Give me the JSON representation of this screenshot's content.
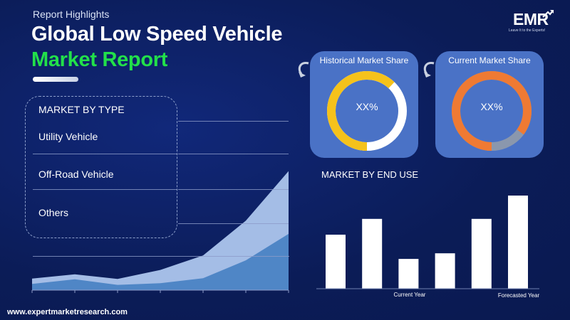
{
  "header": {
    "eyebrow": "Report Highlights",
    "title_line1": "Global Low Speed Vehicle",
    "title_line2": "Market Report"
  },
  "logo": {
    "text": "EMR",
    "tagline": "Leave It to the Experts!"
  },
  "market_by_type": {
    "heading": "MARKET BY TYPE",
    "items": [
      "Utility Vehicle",
      "Off-Road Vehicle",
      "Others"
    ]
  },
  "cards": {
    "historical": {
      "title": "Historical Market Share",
      "value": "XX%",
      "ring_color": "#f5c21b",
      "rest_color": "#ffffff",
      "share": 0.62
    },
    "current": {
      "title": "Current Market Share",
      "value": "XX%",
      "ring_color": "#ef7a33",
      "rest_color": "#8a97ad",
      "share": 0.85
    }
  },
  "market_by_end_use": {
    "heading": "MARKET BY END USE"
  },
  "footer": {
    "url": "www.expertmarketresearch.com"
  },
  "colors": {
    "background": "#0c1f5e",
    "title_accent": "#22e04a",
    "card": "#4a72c6",
    "area_light": "#a4bde6",
    "area_dark": "#4f86c6"
  },
  "chart_data": [
    {
      "type": "area",
      "x": [
        0,
        1,
        2,
        3,
        4,
        5,
        6
      ],
      "series": [
        {
          "values": [
            3.5,
            4.8,
            3.4,
            6.1,
            10.5,
            21,
            36
          ]
        },
        {
          "values": [
            1.9,
            3.3,
            1.6,
            2.1,
            3.6,
            9,
            17
          ]
        }
      ],
      "ylim": [
        0,
        40
      ],
      "grid": true
    },
    {
      "type": "bar",
      "categories": [
        "",
        "",
        "Current Year",
        "",
        "",
        "Forecasted Year"
      ],
      "values": [
        58,
        75,
        32,
        38,
        75,
        100
      ],
      "ylim": [
        0,
        100
      ]
    }
  ]
}
